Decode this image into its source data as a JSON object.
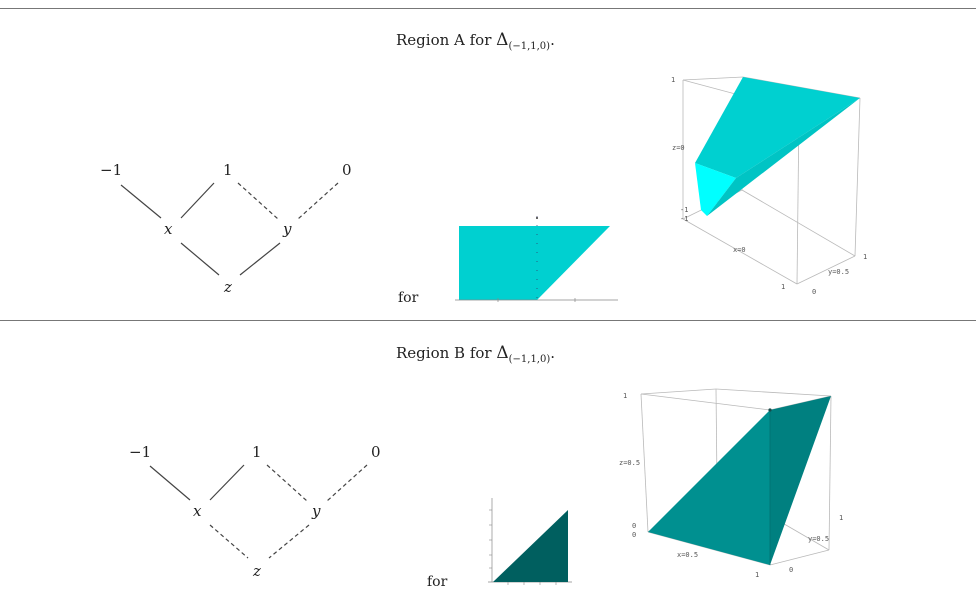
{
  "region_a": {
    "title_prefix": "Region A for ",
    "delta": "Δ",
    "subscript": "(−1,1,0)",
    "title_suffix": ".",
    "for_label": "for",
    "poset": {
      "top": [
        "−1",
        "1",
        "0"
      ],
      "middle": [
        "x",
        "y"
      ],
      "bottom": "z"
    },
    "plot3d_ticks": {
      "z_top": "1",
      "z_mid": "z=0",
      "z_low1": "-1",
      "z_low2": "-1",
      "x_label": "x=0",
      "y_label": "y=0.5",
      "y_max": "1",
      "x_tick1": "1",
      "x_tick0": "0"
    },
    "colors": {
      "face": "#00d0d0",
      "face_light": "#00ffff",
      "face_dark": "#00b8b8",
      "flat": "#00d4d4"
    }
  },
  "region_b": {
    "title_prefix": "Region B for ",
    "delta": "Δ",
    "subscript": "(−1,1,0)",
    "title_suffix": ".",
    "for_label": "for",
    "poset": {
      "top": [
        "−1",
        "1",
        "0"
      ],
      "middle": [
        "x",
        "y"
      ],
      "bottom": "z"
    },
    "plot3d_ticks": {
      "z_top": "1",
      "z_mid": "z=0.5",
      "z_low1": "0",
      "z_low2": "0",
      "x_label": "x=0.5",
      "y_label": "y=0.5",
      "y_max": "1",
      "x_tick1": "1",
      "x_tick0": "0"
    },
    "colors": {
      "face": "#008b8b",
      "face_dark": "#006060",
      "flat": "#005f5f"
    }
  }
}
